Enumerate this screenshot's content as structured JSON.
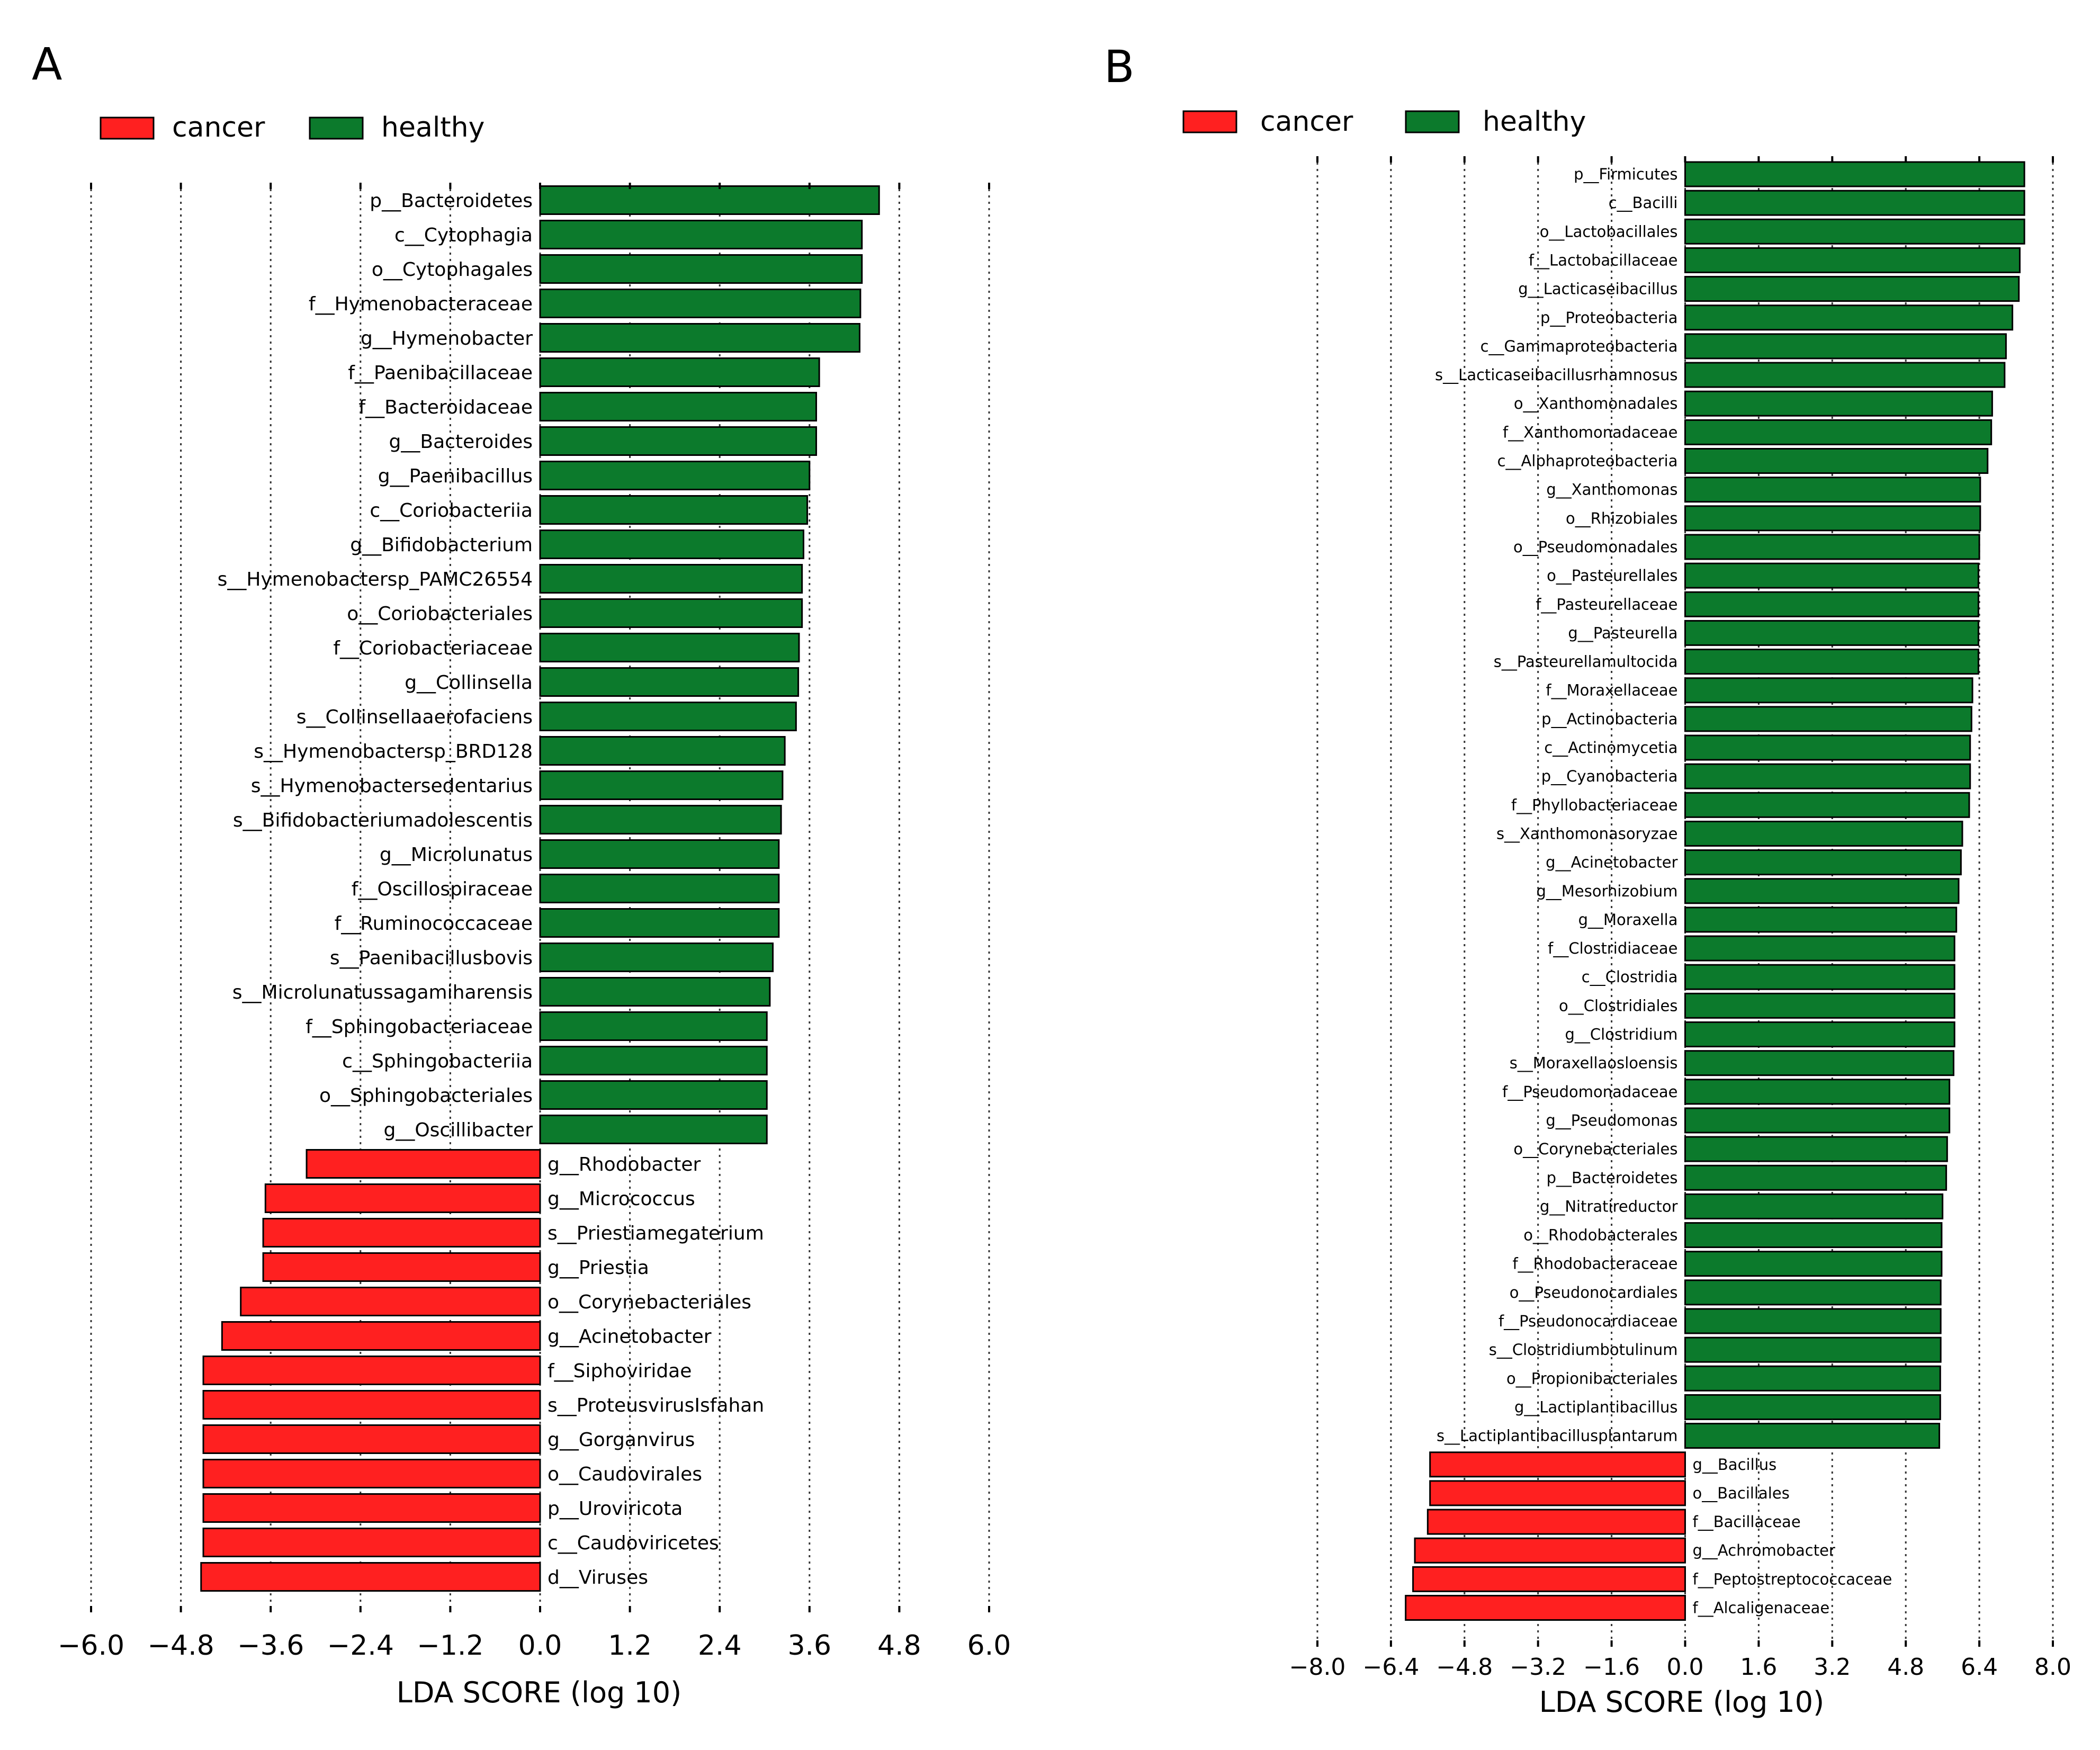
{
  "colors": {
    "cancer": "#ff2020",
    "healthy": "#0c7a2c",
    "bar_edge": "#000000"
  },
  "chart_data": [
    {
      "panel": "A",
      "type": "bar",
      "orientation": "horizontal",
      "legend": [
        "cancer",
        "healthy"
      ],
      "legend_placement": "top-left",
      "xlabel": "LDA SCORE (log 10)",
      "xlim": [
        -6.0,
        6.0
      ],
      "ticks": [
        "−6.0",
        "−4.8",
        "−3.6",
        "−2.4",
        "−1.2",
        "0.0",
        "1.2",
        "2.4",
        "3.6",
        "4.8",
        "6.0"
      ],
      "tick_values": [
        -6.0,
        -4.8,
        -3.6,
        -2.4,
        -1.2,
        0.0,
        1.2,
        2.4,
        3.6,
        4.8,
        6.0
      ],
      "grid": true,
      "bars": [
        {
          "label": "p__Bacteroidetes",
          "value": 4.53,
          "group": "healthy"
        },
        {
          "label": "c__Cytophagia",
          "value": 4.3,
          "group": "healthy"
        },
        {
          "label": "o__Cytophagales",
          "value": 4.3,
          "group": "healthy"
        },
        {
          "label": "f__Hymenobacteraceae",
          "value": 4.28,
          "group": "healthy"
        },
        {
          "label": "g__Hymenobacter",
          "value": 4.27,
          "group": "healthy"
        },
        {
          "label": "f__Paenibacillaceae",
          "value": 3.73,
          "group": "healthy"
        },
        {
          "label": "f__Bacteroidaceae",
          "value": 3.69,
          "group": "healthy"
        },
        {
          "label": "g__Bacteroides",
          "value": 3.69,
          "group": "healthy"
        },
        {
          "label": "g__Paenibacillus",
          "value": 3.6,
          "group": "healthy"
        },
        {
          "label": "c__Coriobacteriia",
          "value": 3.57,
          "group": "healthy"
        },
        {
          "label": "g__Bifidobacterium",
          "value": 3.52,
          "group": "healthy"
        },
        {
          "label": "s__Hymenobactersp_PAMC26554",
          "value": 3.5,
          "group": "healthy"
        },
        {
          "label": "o__Coriobacteriales",
          "value": 3.5,
          "group": "healthy"
        },
        {
          "label": "f__Coriobacteriaceae",
          "value": 3.46,
          "group": "healthy"
        },
        {
          "label": "g__Collinsella",
          "value": 3.45,
          "group": "healthy"
        },
        {
          "label": "s__Collinsellaaerofaciens",
          "value": 3.42,
          "group": "healthy"
        },
        {
          "label": "s__Hymenobactersp_BRD128",
          "value": 3.27,
          "group": "healthy"
        },
        {
          "label": "s__Hymenobactersedentarius",
          "value": 3.24,
          "group": "healthy"
        },
        {
          "label": "s__Bifidobacteriumadolescentis",
          "value": 3.22,
          "group": "healthy"
        },
        {
          "label": "g__Microlunatus",
          "value": 3.19,
          "group": "healthy"
        },
        {
          "label": "f__Oscillospiraceae",
          "value": 3.19,
          "group": "healthy"
        },
        {
          "label": "f__Ruminococcaceae",
          "value": 3.19,
          "group": "healthy"
        },
        {
          "label": "s__Paenibacillusbovis",
          "value": 3.11,
          "group": "healthy"
        },
        {
          "label": "s__Microlunatussagamiharensis",
          "value": 3.07,
          "group": "healthy"
        },
        {
          "label": "f__Sphingobacteriaceae",
          "value": 3.03,
          "group": "healthy"
        },
        {
          "label": "c__Sphingobacteriia",
          "value": 3.03,
          "group": "healthy"
        },
        {
          "label": "o__Sphingobacteriales",
          "value": 3.03,
          "group": "healthy"
        },
        {
          "label": "g__Oscillibacter",
          "value": 3.03,
          "group": "healthy"
        },
        {
          "label": "g__Rhodobacter",
          "value": -3.12,
          "group": "cancer"
        },
        {
          "label": "g__Micrococcus",
          "value": -3.67,
          "group": "cancer"
        },
        {
          "label": "s__Priestiamegaterium",
          "value": -3.7,
          "group": "cancer"
        },
        {
          "label": "g__Priestia",
          "value": -3.7,
          "group": "cancer"
        },
        {
          "label": "o__Corynebacteriales",
          "value": -4.0,
          "group": "cancer"
        },
        {
          "label": "g__Acinetobacter",
          "value": -4.25,
          "group": "cancer"
        },
        {
          "label": "f__Siphoviridae",
          "value": -4.5,
          "group": "cancer"
        },
        {
          "label": "s__ProteusvirusIsfahan",
          "value": -4.5,
          "group": "cancer"
        },
        {
          "label": "g__Gorganvirus",
          "value": -4.5,
          "group": "cancer"
        },
        {
          "label": "o__Caudovirales",
          "value": -4.5,
          "group": "cancer"
        },
        {
          "label": "p__Uroviricota",
          "value": -4.5,
          "group": "cancer"
        },
        {
          "label": "c__Caudoviricetes",
          "value": -4.5,
          "group": "cancer"
        },
        {
          "label": "d__Viruses",
          "value": -4.53,
          "group": "cancer"
        }
      ]
    },
    {
      "panel": "B",
      "type": "bar",
      "orientation": "horizontal",
      "legend": [
        "cancer",
        "healthy"
      ],
      "legend_placement": "top-left",
      "xlabel": "LDA SCORE (log 10)",
      "xlim": [
        -8.0,
        8.0
      ],
      "ticks": [
        "−8.0",
        "−6.4",
        "−4.8",
        "−3.2",
        "−1.6",
        "0.0",
        "1.6",
        "3.2",
        "4.8",
        "6.4",
        "8.0"
      ],
      "tick_values": [
        -8.0,
        -6.4,
        -4.8,
        -3.2,
        -1.6,
        0.0,
        1.6,
        3.2,
        4.8,
        6.4,
        8.0
      ],
      "grid": true,
      "bars": [
        {
          "label": "p__Firmicutes",
          "value": 7.38,
          "group": "healthy"
        },
        {
          "label": "c__Bacilli",
          "value": 7.38,
          "group": "healthy"
        },
        {
          "label": "o__Lactobacillales",
          "value": 7.38,
          "group": "healthy"
        },
        {
          "label": "f__Lactobacillaceae",
          "value": 7.28,
          "group": "healthy"
        },
        {
          "label": "g__Lacticaseibacillus",
          "value": 7.26,
          "group": "healthy"
        },
        {
          "label": "p__Proteobacteria",
          "value": 7.12,
          "group": "healthy"
        },
        {
          "label": "c__Gammaproteobacteria",
          "value": 6.98,
          "group": "healthy"
        },
        {
          "label": "s__Lacticaseibacillusrhamnosus",
          "value": 6.95,
          "group": "healthy"
        },
        {
          "label": "o__Xanthomonadales",
          "value": 6.68,
          "group": "healthy"
        },
        {
          "label": "f__Xanthomonadaceae",
          "value": 6.66,
          "group": "healthy"
        },
        {
          "label": "c__Alphaproteobacteria",
          "value": 6.58,
          "group": "healthy"
        },
        {
          "label": "g__Xanthomonas",
          "value": 6.42,
          "group": "healthy"
        },
        {
          "label": "o__Rhizobiales",
          "value": 6.42,
          "group": "healthy"
        },
        {
          "label": "o__Pseudomonadales",
          "value": 6.4,
          "group": "healthy"
        },
        {
          "label": "o__Pasteurellales",
          "value": 6.38,
          "group": "healthy"
        },
        {
          "label": "f__Pasteurellaceae",
          "value": 6.38,
          "group": "healthy"
        },
        {
          "label": "g__Pasteurella",
          "value": 6.38,
          "group": "healthy"
        },
        {
          "label": "s__Pasteurellamultocida",
          "value": 6.38,
          "group": "healthy"
        },
        {
          "label": "f__Moraxellaceae",
          "value": 6.25,
          "group": "healthy"
        },
        {
          "label": "p__Actinobacteria",
          "value": 6.23,
          "group": "healthy"
        },
        {
          "label": "c__Actinomycetia",
          "value": 6.2,
          "group": "healthy"
        },
        {
          "label": "p__Cyanobacteria",
          "value": 6.2,
          "group": "healthy"
        },
        {
          "label": "f__Phyllobacteriaceae",
          "value": 6.18,
          "group": "healthy"
        },
        {
          "label": "s__Xanthomonasoryzae",
          "value": 6.03,
          "group": "healthy"
        },
        {
          "label": "g__Acinetobacter",
          "value": 6.0,
          "group": "healthy"
        },
        {
          "label": "g__Mesorhizobium",
          "value": 5.95,
          "group": "healthy"
        },
        {
          "label": "g__Moraxella",
          "value": 5.9,
          "group": "healthy"
        },
        {
          "label": "f__Clostridiaceae",
          "value": 5.86,
          "group": "healthy"
        },
        {
          "label": "c__Clostridia",
          "value": 5.86,
          "group": "healthy"
        },
        {
          "label": "o__Clostridiales",
          "value": 5.86,
          "group": "healthy"
        },
        {
          "label": "g__Clostridium",
          "value": 5.86,
          "group": "healthy"
        },
        {
          "label": "s__Moraxellaosloensis",
          "value": 5.84,
          "group": "healthy"
        },
        {
          "label": "f__Pseudomonadaceae",
          "value": 5.75,
          "group": "healthy"
        },
        {
          "label": "g__Pseudomonas",
          "value": 5.75,
          "group": "healthy"
        },
        {
          "label": "o__Corynebacteriales",
          "value": 5.7,
          "group": "healthy"
        },
        {
          "label": "p__Bacteroidetes",
          "value": 5.68,
          "group": "healthy"
        },
        {
          "label": "g__Nitratireductor",
          "value": 5.6,
          "group": "healthy"
        },
        {
          "label": "o__Rhodobacterales",
          "value": 5.58,
          "group": "healthy"
        },
        {
          "label": "f__Rhodobacteraceae",
          "value": 5.58,
          "group": "healthy"
        },
        {
          "label": "o__Pseudonocardiales",
          "value": 5.56,
          "group": "healthy"
        },
        {
          "label": "f__Pseudonocardiaceae",
          "value": 5.56,
          "group": "healthy"
        },
        {
          "label": "s__Clostridiumbotulinum",
          "value": 5.56,
          "group": "healthy"
        },
        {
          "label": "o__Propionibacteriales",
          "value": 5.55,
          "group": "healthy"
        },
        {
          "label": "g__Lactiplantibacillus",
          "value": 5.55,
          "group": "healthy"
        },
        {
          "label": "s__Lactiplantibacillusplantarum",
          "value": 5.53,
          "group": "healthy"
        },
        {
          "label": "g__Bacillus",
          "value": -5.55,
          "group": "cancer"
        },
        {
          "label": "o__Bacillales",
          "value": -5.55,
          "group": "cancer"
        },
        {
          "label": "f__Bacillaceae",
          "value": -5.6,
          "group": "cancer"
        },
        {
          "label": "g__Achromobacter",
          "value": -5.88,
          "group": "cancer"
        },
        {
          "label": "f__Peptostreptococcaceae",
          "value": -5.92,
          "group": "cancer"
        },
        {
          "label": "f__Alcaligenaceae",
          "value": -6.08,
          "group": "cancer"
        }
      ]
    }
  ]
}
